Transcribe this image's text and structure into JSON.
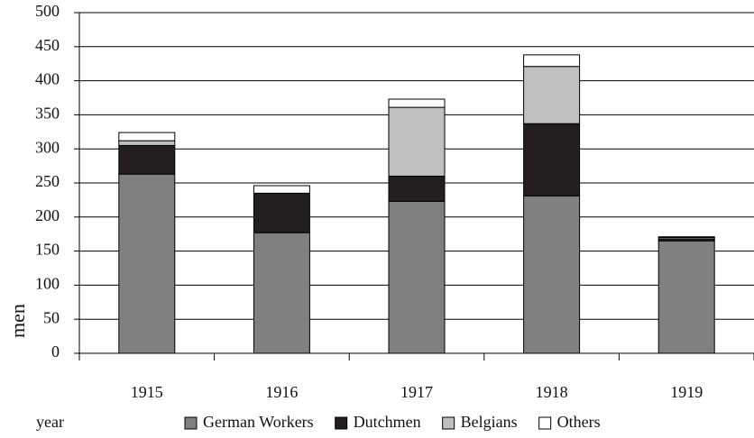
{
  "chart_data": {
    "type": "stacked_bar",
    "x_label": "year",
    "y_label": "men",
    "categories": [
      "1915",
      "1916",
      "1917",
      "1918",
      "1919"
    ],
    "series": [
      {
        "name": "German Workers",
        "color": "#808080",
        "values": [
          263,
          177,
          223,
          231,
          165
        ]
      },
      {
        "name": "Dutchmen",
        "color": "#231f20",
        "values": [
          42,
          58,
          37,
          106,
          3
        ]
      },
      {
        "name": "Belgians",
        "color": "#c0c0c0",
        "values": [
          7,
          0,
          101,
          84,
          2
        ]
      },
      {
        "name": "Others",
        "color": "#ffffff",
        "values": [
          12,
          11,
          12,
          17,
          1
        ]
      }
    ],
    "ylim": [
      0,
      500
    ],
    "yticks": [
      0,
      50,
      100,
      150,
      200,
      250,
      300,
      350,
      400,
      450,
      500
    ],
    "grid": true
  }
}
